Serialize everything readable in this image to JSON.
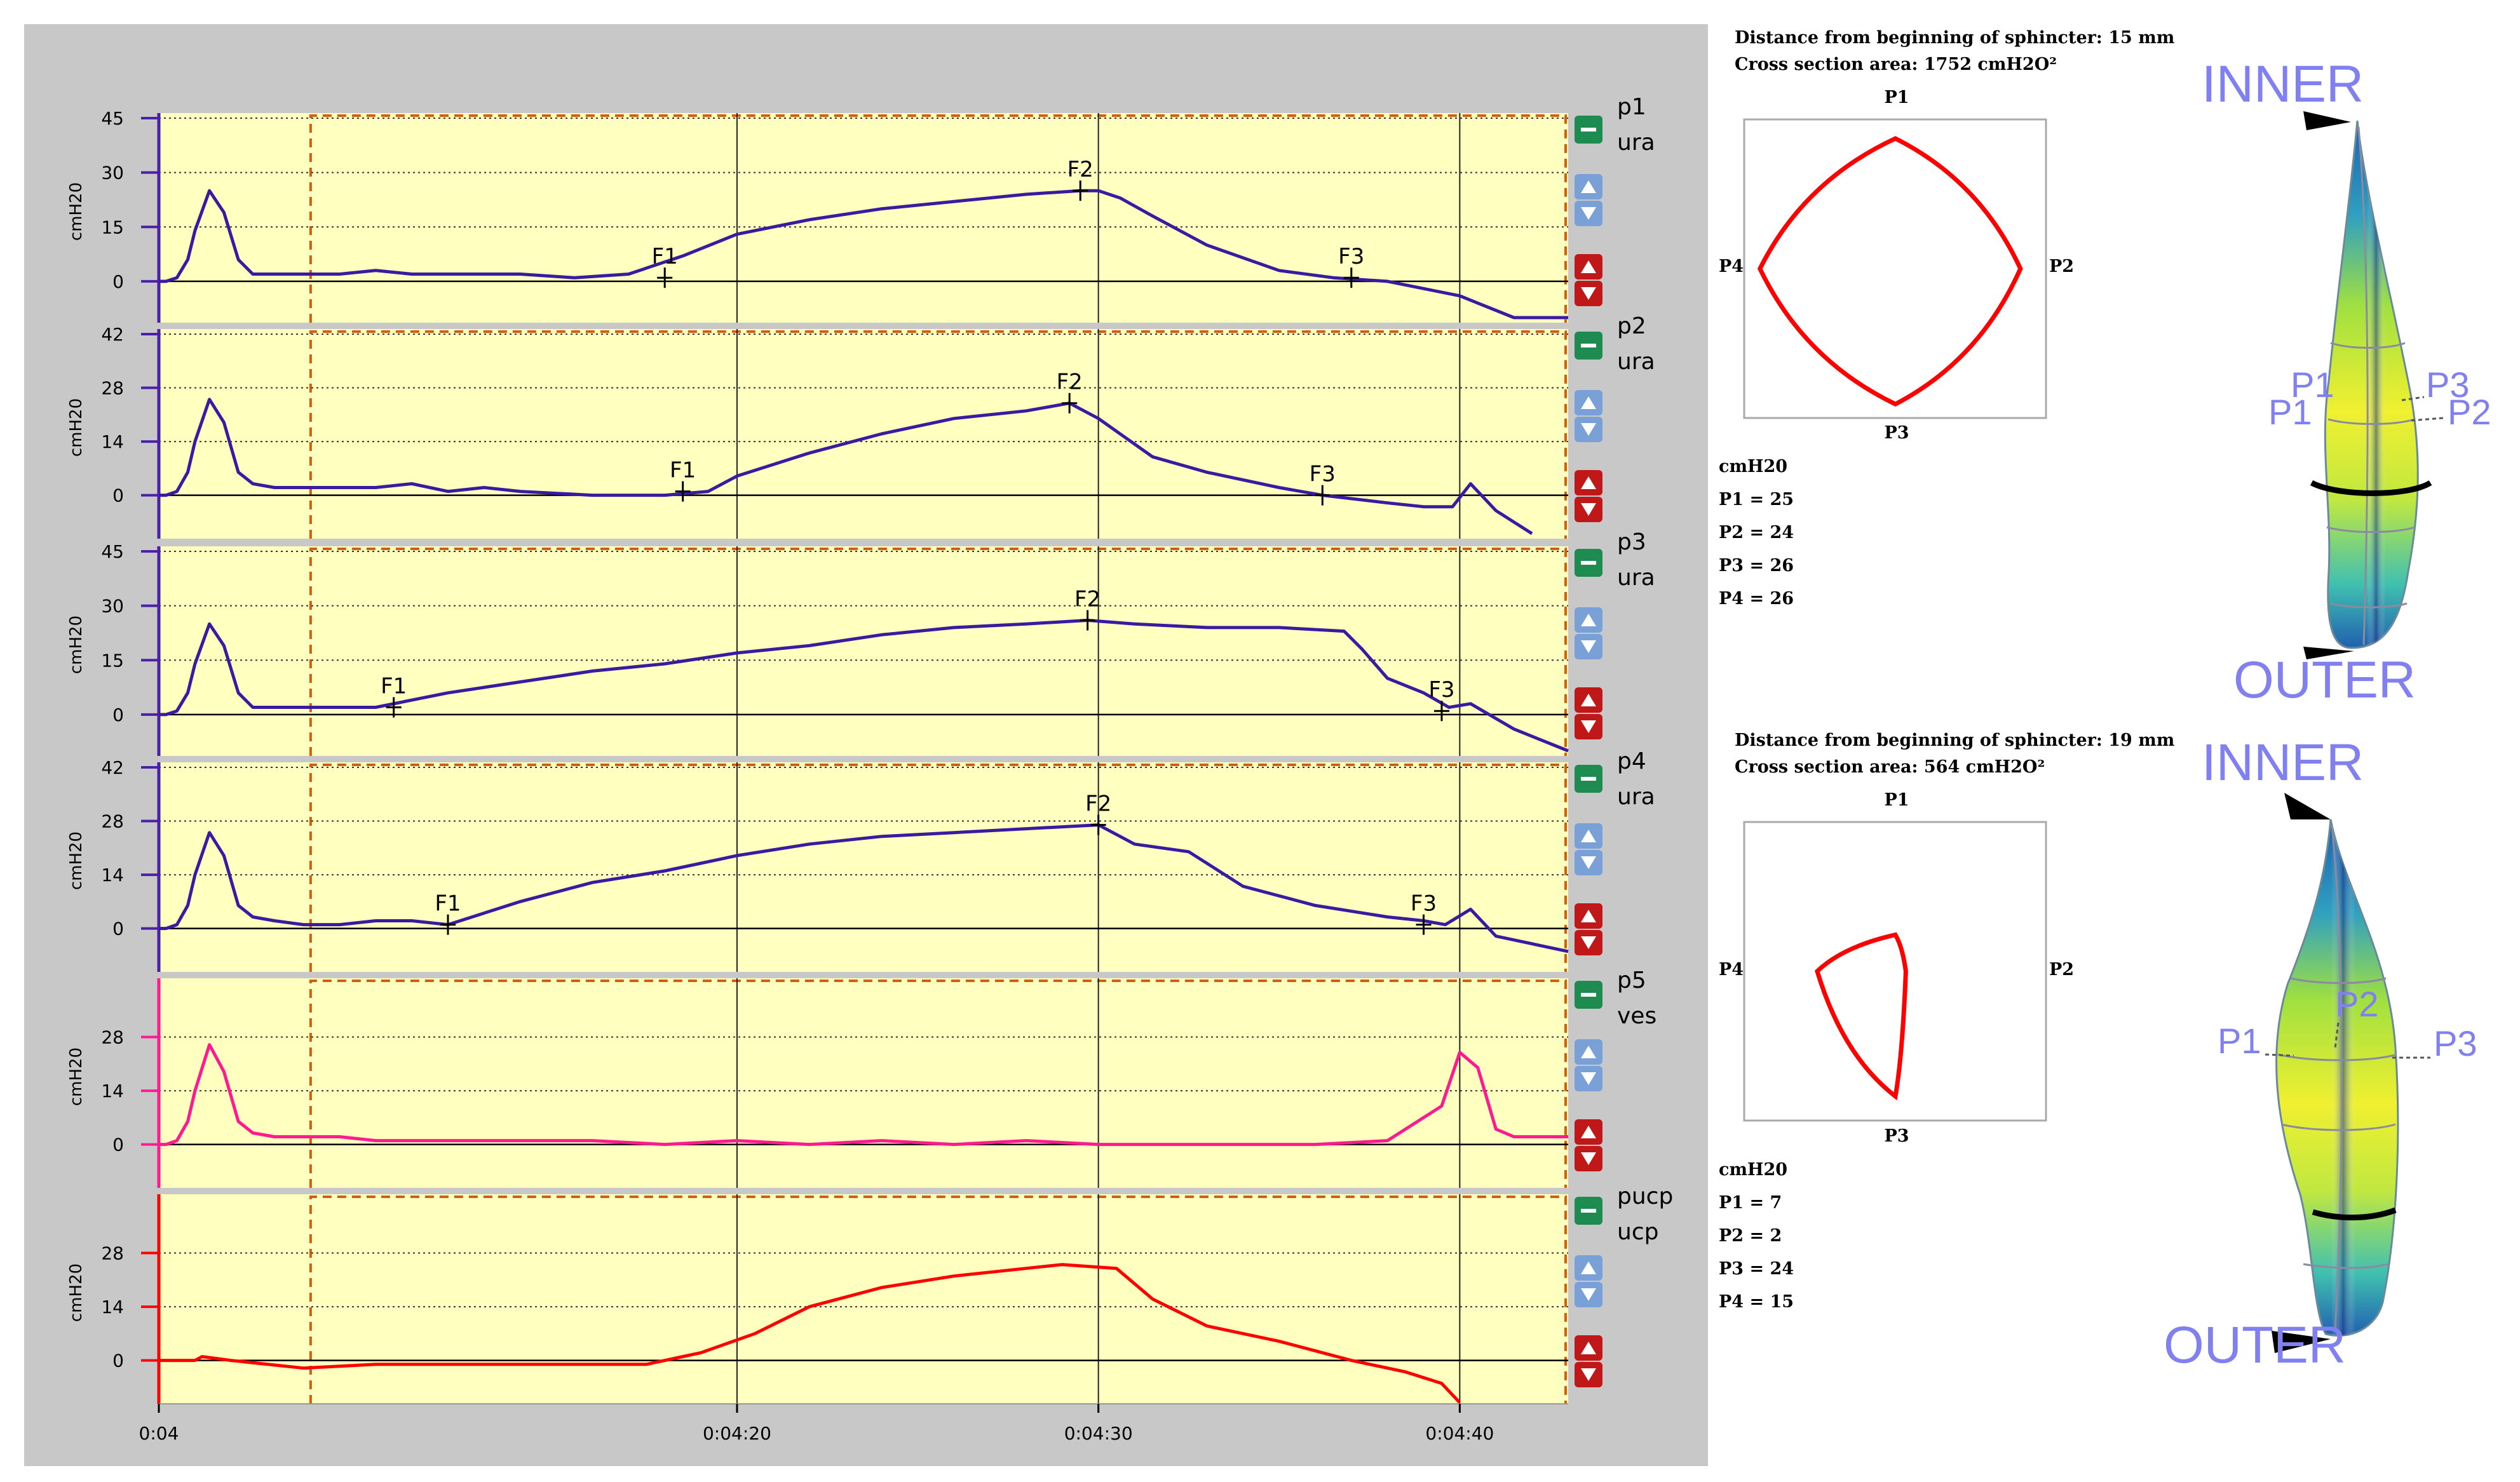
{
  "colors": {
    "panel_bg": "#c8c8c8",
    "plot_bg": "#ffffc0",
    "ura_trace": "#3a1aa0",
    "ves_trace": "#ff1a90",
    "ucp_trace": "#ff0000",
    "axis_purple": "#4b1fa8",
    "axis_pink": "#ff1a90",
    "axis_red": "#ff0000",
    "dashed_box": "#d06010",
    "cross_section": "#ff0000",
    "model_label": "#8080f0"
  },
  "x_axis": {
    "range_seconds": [
      4,
      43
    ],
    "ticks": [
      {
        "t": 4,
        "label": "0:04"
      },
      {
        "t": 20,
        "label": "0:04:20"
      },
      {
        "t": 30,
        "label": "0:04:30"
      },
      {
        "t": 40,
        "label": "0:04:40"
      }
    ]
  },
  "y_unit": "cmH20",
  "chart_data": [
    {
      "type": "line",
      "channel": "p1",
      "site": "ura",
      "color": "#3a1aa0",
      "ylim": [
        -10,
        45
      ],
      "yticks": [
        0,
        15,
        30,
        45
      ],
      "x": [
        4,
        4.2,
        4.5,
        4.8,
        5.0,
        5.4,
        5.8,
        6.2,
        6.6,
        7.2,
        8.0,
        9.0,
        10.0,
        11.0,
        12.0,
        13.0,
        14.0,
        15.5,
        17.0,
        18.5,
        20.0,
        22.0,
        24.0,
        26.0,
        28.0,
        29.5,
        30.0,
        30.6,
        31.5,
        33.0,
        35.0,
        36.5,
        38.0,
        39.0,
        40.0,
        40.5,
        41.5,
        43
      ],
      "y": [
        0,
        0,
        1,
        6,
        14,
        25,
        19,
        6,
        2,
        2,
        2,
        2,
        3,
        2,
        2,
        2,
        2,
        1,
        2,
        7,
        13,
        17,
        20,
        22,
        24,
        25,
        25,
        23,
        18,
        10,
        3,
        1,
        0,
        -2,
        -4,
        -6,
        -10,
        -10
      ],
      "markers": [
        {
          "label": "F1",
          "x": 18.0,
          "y": 1
        },
        {
          "label": "F2",
          "x": 29.5,
          "y": 25
        },
        {
          "label": "F3",
          "x": 37.0,
          "y": 1
        }
      ]
    },
    {
      "type": "line",
      "channel": "p2",
      "site": "ura",
      "color": "#3a1aa0",
      "ylim": [
        -10,
        42
      ],
      "yticks": [
        0,
        14,
        28,
        42
      ],
      "x": [
        4,
        4.2,
        4.5,
        4.8,
        5.0,
        5.4,
        5.8,
        6.2,
        6.6,
        7.2,
        8.0,
        9.0,
        10.0,
        11.0,
        12.0,
        13.0,
        14.0,
        16.0,
        18.0,
        19.2,
        20.0,
        22.0,
        24.0,
        26.0,
        28.0,
        29.2,
        30.0,
        31.5,
        33.0,
        35.0,
        36.2,
        38.0,
        39.0,
        39.8,
        40.3,
        41.0,
        42.0
      ],
      "y": [
        0,
        0,
        1,
        6,
        14,
        25,
        19,
        6,
        3,
        2,
        2,
        2,
        2,
        3,
        1,
        2,
        1,
        0,
        0,
        1,
        5,
        11,
        16,
        20,
        22,
        24,
        20,
        10,
        6,
        2,
        0,
        -2,
        -3,
        -3,
        3,
        -4,
        -10
      ],
      "markers": [
        {
          "label": "F1",
          "x": 18.5,
          "y": 1
        },
        {
          "label": "F2",
          "x": 29.2,
          "y": 24
        },
        {
          "label": "F3",
          "x": 36.2,
          "y": 0
        }
      ]
    },
    {
      "type": "line",
      "channel": "p3",
      "site": "ura",
      "color": "#3a1aa0",
      "ylim": [
        -10,
        45
      ],
      "yticks": [
        0,
        15,
        30,
        45
      ],
      "x": [
        4,
        4.2,
        4.5,
        4.8,
        5.0,
        5.4,
        5.8,
        6.2,
        6.6,
        7.2,
        8.0,
        9.0,
        10.0,
        12.0,
        14.0,
        16.0,
        18.0,
        20.0,
        22.0,
        24.0,
        26.0,
        28.0,
        29.7,
        31.0,
        33.0,
        35.0,
        36.8,
        37.3,
        38.0,
        39.0,
        39.7,
        40.3,
        41.5,
        43
      ],
      "y": [
        0,
        0,
        1,
        6,
        14,
        25,
        19,
        6,
        2,
        2,
        2,
        2,
        2,
        6,
        9,
        12,
        14,
        17,
        19,
        22,
        24,
        25,
        26,
        25,
        24,
        24,
        23,
        18,
        10,
        6,
        2,
        3,
        -4,
        -10
      ],
      "markers": [
        {
          "label": "F1",
          "x": 10.5,
          "y": 2
        },
        {
          "label": "F2",
          "x": 29.7,
          "y": 26
        },
        {
          "label": "F3",
          "x": 39.5,
          "y": 1
        }
      ]
    },
    {
      "type": "line",
      "channel": "p4",
      "site": "ura",
      "color": "#3a1aa0",
      "ylim": [
        -10,
        42
      ],
      "yticks": [
        0,
        14,
        28,
        42
      ],
      "x": [
        4,
        4.2,
        4.5,
        4.8,
        5.0,
        5.4,
        5.8,
        6.2,
        6.6,
        7.2,
        8.0,
        9.0,
        10.0,
        11.0,
        12.0,
        14.0,
        16.0,
        18.0,
        20.0,
        22.0,
        24.0,
        26.0,
        28.0,
        30.0,
        31.0,
        32.5,
        34.0,
        36.0,
        38.0,
        39.0,
        39.6,
        40.3,
        41.0,
        43
      ],
      "y": [
        0,
        0,
        1,
        6,
        14,
        25,
        19,
        6,
        3,
        2,
        1,
        1,
        2,
        2,
        1,
        7,
        12,
        15,
        19,
        22,
        24,
        25,
        26,
        27,
        22,
        20,
        11,
        6,
        3,
        2,
        1,
        5,
        -2,
        -6
      ],
      "markers": [
        {
          "label": "F1",
          "x": 12.0,
          "y": 1
        },
        {
          "label": "F2",
          "x": 30.0,
          "y": 27
        },
        {
          "label": "F3",
          "x": 39.0,
          "y": 1
        }
      ]
    },
    {
      "type": "line",
      "channel": "p5",
      "site": "ves",
      "color": "#ff1a90",
      "ylim": [
        -10,
        42
      ],
      "yticks": [
        0,
        14,
        28
      ],
      "x": [
        4,
        4.2,
        4.5,
        4.8,
        5.0,
        5.4,
        5.8,
        6.2,
        6.6,
        7.2,
        8.0,
        9.0,
        10.0,
        12.0,
        14.0,
        16.0,
        18.0,
        20.0,
        22.0,
        24.0,
        26.0,
        28.0,
        30.0,
        32.0,
        34.0,
        36.0,
        38.0,
        39.5,
        40.0,
        40.5,
        41.0,
        41.5,
        42.0,
        43
      ],
      "y": [
        0,
        0,
        1,
        6,
        14,
        26,
        19,
        6,
        3,
        2,
        2,
        2,
        1,
        1,
        1,
        1,
        0,
        1,
        0,
        1,
        0,
        1,
        0,
        0,
        0,
        0,
        1,
        10,
        24,
        20,
        4,
        2,
        2,
        2
      ],
      "markers": []
    },
    {
      "type": "line",
      "channel": "pucp",
      "site": "ucp",
      "color": "#ff0000",
      "ylim": [
        -10,
        42
      ],
      "yticks": [
        0,
        14,
        28
      ],
      "x": [
        4,
        5.0,
        5.2,
        6.0,
        8.0,
        10.0,
        12.0,
        14.0,
        16.0,
        17.5,
        19.0,
        20.5,
        22.0,
        24.0,
        26.0,
        28.0,
        29.0,
        30.5,
        31.5,
        33.0,
        35.0,
        37.0,
        38.5,
        39.5,
        40.0
      ],
      "y": [
        0,
        0,
        1,
        0,
        -2,
        -1,
        -1,
        -1,
        -1,
        -1,
        2,
        7,
        14,
        19,
        22,
        24,
        25,
        24,
        16,
        9,
        5,
        0,
        -3,
        -6,
        -12
      ],
      "markers": []
    }
  ],
  "cross_sections": [
    {
      "distance_text": "Distance from beginning of sphincter: 15 mm",
      "area_text": "Cross section area: 1752 cmH2O²",
      "labels": {
        "top": "P1",
        "right": "P2",
        "bottom": "P3",
        "left": "P4"
      },
      "unit": "cmH20",
      "values": [
        {
          "name": "P1",
          "value": 25
        },
        {
          "name": "P2",
          "value": 24
        },
        {
          "name": "P3",
          "value": 26
        },
        {
          "name": "P4",
          "value": 26
        }
      ],
      "values_text": [
        "P1 = 25",
        "P2 = 24",
        "P3 = 26",
        "P4 = 26"
      ],
      "model": {
        "inner": "INNER",
        "outer": "OUTER",
        "p_labels": [
          "P1",
          "P2",
          "P3",
          "P1",
          "P2"
        ]
      }
    },
    {
      "distance_text": "Distance from beginning of sphincter: 19 mm",
      "area_text": "Cross section area: 564 cmH2O²",
      "labels": {
        "top": "P1",
        "right": "P2",
        "bottom": "P3",
        "left": "P4"
      },
      "unit": "cmH20",
      "values": [
        {
          "name": "P1",
          "value": 7
        },
        {
          "name": "P2",
          "value": 2
        },
        {
          "name": "P3",
          "value": 24
        },
        {
          "name": "P4",
          "value": 15
        }
      ],
      "values_text": [
        "P1 = 7",
        "P2 = 2",
        "P3 = 24",
        "P4 = 15"
      ],
      "model": {
        "inner": "INNER",
        "outer": "OUTER",
        "p_labels": [
          "P1",
          "P2",
          "P3"
        ]
      }
    }
  ]
}
